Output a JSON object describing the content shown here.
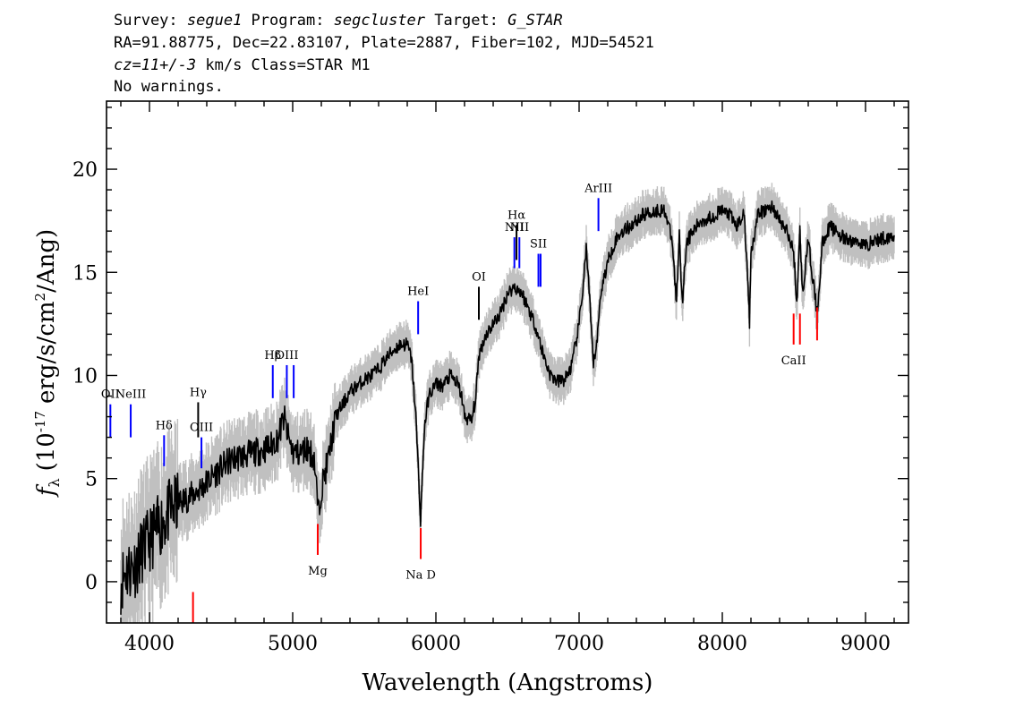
{
  "header": {
    "line1": {
      "survey_key": "Survey: ",
      "survey": "segue1",
      "program_key": " Program: ",
      "program": "segcluster",
      "target_key": " Target: ",
      "target": "G_STAR"
    },
    "line2": "RA=91.88775, Dec=22.83107, Plate=2887, Fiber=102, MJD=54521",
    "line3": {
      "cz": "cz=11+/-3",
      "rest": " km/s Class=STAR M1"
    },
    "line4": "No warnings."
  },
  "chart_data": {
    "type": "line",
    "xlabel": "Wavelength (Angstroms)",
    "ylabel": "f",
    "ylabel_sub": "λ",
    "ylabel_units": "(10",
    "ylabel_exp": "-17",
    "ylabel_tail": "erg/s/cm",
    "ylabel_exp2": "2",
    "ylabel_end": "/Ang)",
    "xlim": [
      3700,
      9300
    ],
    "ylim": [
      -2,
      23.3
    ],
    "xticks": [
      4000,
      5000,
      6000,
      7000,
      8000,
      9000
    ],
    "yticks": [
      0,
      5,
      10,
      15,
      20
    ],
    "series": [
      {
        "color": "#000000",
        "error_color": "#c0c0c0",
        "x": [
          3800,
          3830,
          3900,
          3950,
          4000,
          4050,
          4100,
          4150,
          4200,
          4250,
          4300,
          4350,
          4400,
          4450,
          4500,
          4550,
          4600,
          4650,
          4700,
          4750,
          4800,
          4850,
          4900,
          4920,
          4940,
          4960,
          5000,
          5050,
          5100,
          5150,
          5170,
          5180,
          5200,
          5250,
          5300,
          5350,
          5400,
          5450,
          5500,
          5550,
          5600,
          5650,
          5700,
          5750,
          5800,
          5830,
          5860,
          5880,
          5893,
          5905,
          5920,
          5950,
          6000,
          6050,
          6100,
          6150,
          6180,
          6200,
          6250,
          6280,
          6300,
          6350,
          6400,
          6450,
          6500,
          6550,
          6600,
          6650,
          6700,
          6750,
          6800,
          6850,
          6900,
          6950,
          7000,
          7030,
          7050,
          7070,
          7100,
          7130,
          7150,
          7200,
          7250,
          7300,
          7350,
          7400,
          7450,
          7500,
          7550,
          7600,
          7650,
          7680,
          7700,
          7720,
          7750,
          7800,
          7850,
          7900,
          7950,
          8000,
          8050,
          8100,
          8150,
          8180,
          8190,
          8200,
          8250,
          8300,
          8350,
          8400,
          8450,
          8498,
          8520,
          8542,
          8560,
          8600,
          8662,
          8700,
          8750,
          8800,
          8850,
          8900,
          8950,
          9000,
          9050,
          9100,
          9150,
          9200
        ],
        "y": [
          0.0,
          0.5,
          0.8,
          1.5,
          2.0,
          2.5,
          3.0,
          3.5,
          3.8,
          4.0,
          4.2,
          4.5,
          4.8,
          5.2,
          5.5,
          5.8,
          6.0,
          6.1,
          6.2,
          6.3,
          6.4,
          6.6,
          7.0,
          7.5,
          8.0,
          7.2,
          6.3,
          6.2,
          6.5,
          6.0,
          4.2,
          3.3,
          4.5,
          6.0,
          8.0,
          8.6,
          9.2,
          9.5,
          9.8,
          10.0,
          10.3,
          10.8,
          11.2,
          11.5,
          11.5,
          10.8,
          8.0,
          5.0,
          3.0,
          5.0,
          7.5,
          9.0,
          9.6,
          9.5,
          10.0,
          9.6,
          9.0,
          8.0,
          7.8,
          9.0,
          11.0,
          12.0,
          12.5,
          13.0,
          14.0,
          14.3,
          14.0,
          13.2,
          12.3,
          11.0,
          10.0,
          9.7,
          9.8,
          10.5,
          12.5,
          14.5,
          16.2,
          14.0,
          10.5,
          12.0,
          14.0,
          15.5,
          16.5,
          17.0,
          17.2,
          17.5,
          17.8,
          17.9,
          18.0,
          18.0,
          16.5,
          13.5,
          17.0,
          13.5,
          16.5,
          17.0,
          17.5,
          17.6,
          17.8,
          18.0,
          17.8,
          17.2,
          17.9,
          14.5,
          12.5,
          16.0,
          17.8,
          18.0,
          18.2,
          17.5,
          17.0,
          16.0,
          13.5,
          17.0,
          14.0,
          16.5,
          13.0,
          16.5,
          17.2,
          17.0,
          16.6,
          16.5,
          16.5,
          16.3,
          16.5,
          16.6,
          16.7,
          16.8
        ]
      }
    ],
    "emission_lines": [
      {
        "label": "OII",
        "x": 3727,
        "y_bottom": 7.0,
        "y_top": 8.6,
        "color": "#0000ff"
      },
      {
        "label": "NeIII",
        "x": 3869,
        "y_bottom": 7.0,
        "y_top": 8.6,
        "color": "#0000ff"
      },
      {
        "label": "Hδ",
        "x": 4102,
        "y_bottom": 5.6,
        "y_top": 7.1,
        "color": "#0000ff"
      },
      {
        "label": "Hγ",
        "x": 4340,
        "y_bottom": 7.0,
        "y_top": 8.7,
        "color": "#000000"
      },
      {
        "label": "OIII",
        "x": 4363,
        "y_bottom": 5.5,
        "y_top": 7.0,
        "color": "#0000ff"
      },
      {
        "label": "Hβ",
        "x": 4861,
        "y_bottom": 8.9,
        "y_top": 10.5,
        "color": "#0000ff"
      },
      {
        "label": "OIII",
        "x": 4959,
        "y_bottom": 8.9,
        "y_top": 10.5,
        "color": "#0000ff"
      },
      {
        "label": "",
        "x": 5007,
        "y_bottom": 8.9,
        "y_top": 10.5,
        "color": "#0000ff"
      },
      {
        "label": "HeI",
        "x": 5876,
        "y_bottom": 12.0,
        "y_top": 13.6,
        "color": "#0000ff"
      },
      {
        "label": "OI",
        "x": 6300,
        "y_bottom": 12.7,
        "y_top": 14.3,
        "color": "#000000"
      },
      {
        "label": "NII",
        "x": 6548,
        "y_bottom": 15.2,
        "y_top": 16.7,
        "color": "#0000ff"
      },
      {
        "label": "Hα",
        "x": 6563,
        "y_bottom": 15.6,
        "y_top": 17.3,
        "color": "#000000"
      },
      {
        "label": "NII",
        "x": 6583,
        "y_bottom": 15.2,
        "y_top": 16.7,
        "color": "#0000ff"
      },
      {
        "label": "SII",
        "x": 6716,
        "y_bottom": 14.3,
        "y_top": 15.9,
        "color": "#0000ff"
      },
      {
        "label": "",
        "x": 6731,
        "y_bottom": 14.3,
        "y_top": 15.9,
        "color": "#0000ff"
      },
      {
        "label": "ArIII",
        "x": 7135,
        "y_bottom": 17.0,
        "y_top": 18.6,
        "color": "#0000ff"
      }
    ],
    "absorption_lines": [
      {
        "label": "",
        "x": 4304,
        "y_bottom": -2.0,
        "y_top": -0.5,
        "color": "#ff0000"
      },
      {
        "label": "Mg",
        "x": 5175,
        "y_bottom": 1.3,
        "y_top": 2.8,
        "color": "#ff0000"
      },
      {
        "label": "Na D",
        "x": 5894,
        "y_bottom": 1.1,
        "y_top": 2.6,
        "color": "#ff0000"
      },
      {
        "label": "CaII",
        "x": 8498,
        "y_bottom": 11.5,
        "y_top": 13.0,
        "color": "#ff0000"
      },
      {
        "label": "",
        "x": 8542,
        "y_bottom": 11.5,
        "y_top": 13.0,
        "color": "#ff0000"
      },
      {
        "label": "",
        "x": 8662,
        "y_bottom": 11.7,
        "y_top": 13.3,
        "color": "#ff0000"
      }
    ]
  }
}
